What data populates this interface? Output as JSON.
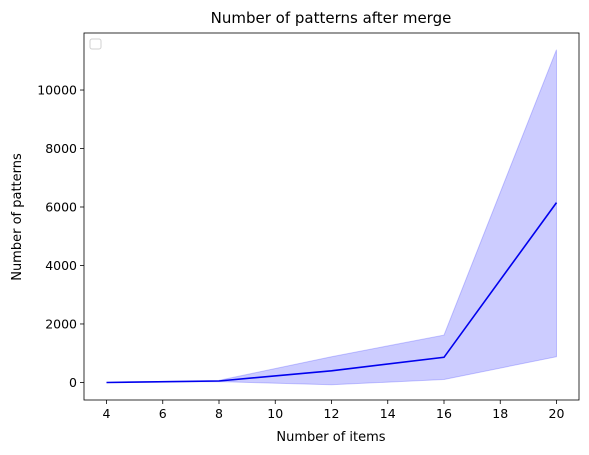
{
  "chart_data": {
    "type": "line",
    "title": "Number of patterns after merge",
    "xlabel": "Number of items",
    "ylabel": "Number of patterns",
    "x": [
      4,
      8,
      12,
      16,
      20
    ],
    "series": [
      {
        "values": [
          0,
          50,
          400,
          860,
          6150
        ],
        "lower": [
          0,
          30,
          -80,
          100,
          880
        ],
        "upper": [
          0,
          70,
          880,
          1620,
          11380
        ]
      }
    ],
    "xlim": [
      3.2,
      20.8
    ],
    "ylim": [
      -600,
      11950
    ],
    "xticks": [
      4,
      6,
      8,
      10,
      12,
      14,
      16,
      18,
      20
    ],
    "yticks": [
      0,
      2000,
      4000,
      6000,
      8000,
      10000
    ],
    "grid": false,
    "legend": "upper-left (empty)",
    "colors": {
      "line": "#0000ee",
      "band": "#0000ff",
      "band_opacity": 0.2,
      "axes": "#000000"
    }
  }
}
